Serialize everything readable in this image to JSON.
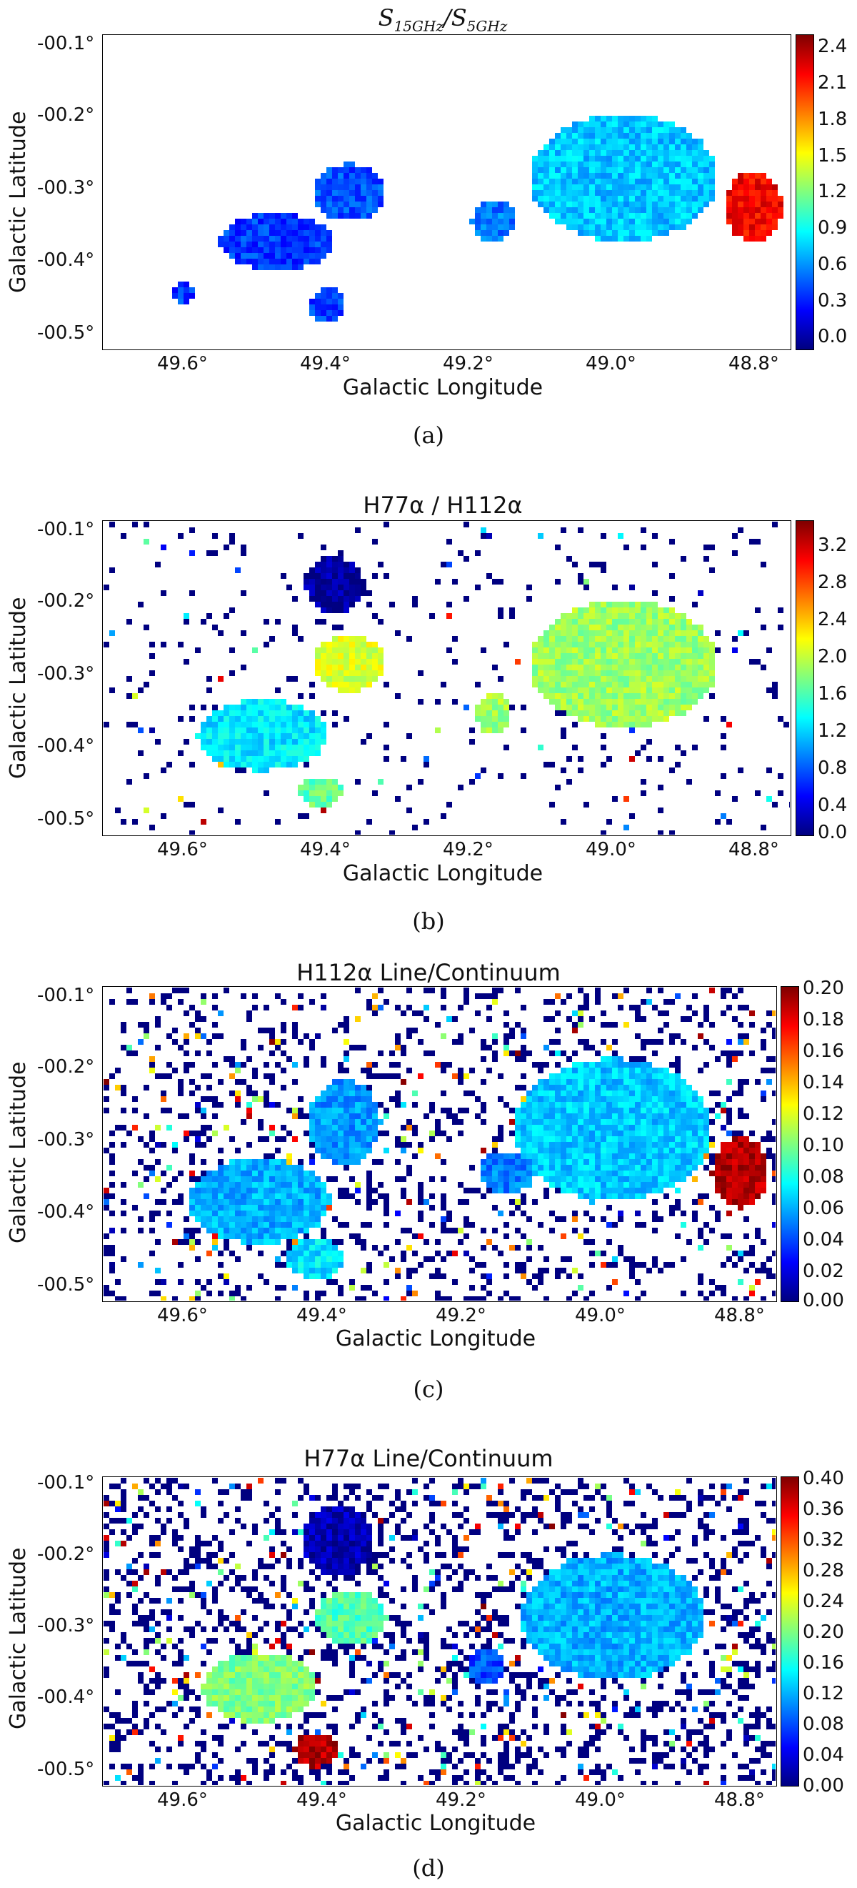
{
  "panels": [
    {
      "title_main": "S",
      "title_sub1": "15GHz",
      "title_mid": "/S",
      "title_sub2": "5GHz",
      "caption": "(a)",
      "xlabel": "Galactic Longitude",
      "ylabel": "Galactic Latitude",
      "x_ticks": [
        "49.6°",
        "49.4°",
        "49.2°",
        "49.0°",
        "48.8°"
      ],
      "y_ticks": [
        "-00.1°",
        "-00.2°",
        "-00.3°",
        "-00.4°",
        "-00.5°"
      ],
      "cbar_ticks": [
        "2.4",
        "2.1",
        "1.8",
        "1.5",
        "1.2",
        "0.9",
        "0.6",
        "0.3",
        "0.0"
      ]
    },
    {
      "title": "H77α / H112α",
      "caption": "(b)",
      "xlabel": "Galactic Longitude",
      "ylabel": "Galactic Latitude",
      "x_ticks": [
        "49.6°",
        "49.4°",
        "49.2°",
        "49.0°",
        "48.8°"
      ],
      "y_ticks": [
        "-00.1°",
        "-00.2°",
        "-00.3°",
        "-00.4°",
        "-00.5°"
      ],
      "cbar_ticks": [
        "3.2",
        "2.8",
        "2.4",
        "2.0",
        "1.6",
        "1.2",
        "0.8",
        "0.4",
        "0.0"
      ]
    },
    {
      "title": "H112α Line/Continuum",
      "caption": "(c)",
      "xlabel": "Galactic Longitude",
      "ylabel": "Galactic Latitude",
      "x_ticks": [
        "49.6°",
        "49.4°",
        "49.2°",
        "49.0°",
        "48.8°"
      ],
      "y_ticks": [
        "-00.1°",
        "-00.2°",
        "-00.3°",
        "-00.4°",
        "-00.5°"
      ],
      "cbar_ticks": [
        "0.20",
        "0.18",
        "0.16",
        "0.14",
        "0.12",
        "0.10",
        "0.08",
        "0.06",
        "0.04",
        "0.02",
        "0.00"
      ]
    },
    {
      "title": "H77α Line/Continuum",
      "caption": "(d)",
      "xlabel": "Galactic Longitude",
      "ylabel": "Galactic Latitude",
      "x_ticks": [
        "49.6°",
        "49.4°",
        "49.2°",
        "49.0°",
        "48.8°"
      ],
      "y_ticks": [
        "-00.1°",
        "-00.2°",
        "-00.3°",
        "-00.4°",
        "-00.5°"
      ],
      "cbar_ticks": [
        "0.40",
        "0.36",
        "0.32",
        "0.28",
        "0.24",
        "0.20",
        "0.16",
        "0.12",
        "0.08",
        "0.04",
        "0.00"
      ]
    }
  ],
  "chart_data": [
    {
      "type": "heatmap",
      "x_ticks": [
        49.6,
        49.4,
        49.2,
        49.0,
        48.8
      ],
      "y_ticks": [
        -0.1,
        -0.2,
        -0.3,
        -0.4,
        -0.5
      ],
      "xlim": [
        49.72,
        48.77
      ],
      "ylim": [
        -0.53,
        -0.09
      ],
      "colorbar": {
        "min": 0.0,
        "max": 2.5,
        "colormap": "jet"
      },
      "regions": [
        {
          "l": 49.48,
          "b": -0.38,
          "rl": 0.08,
          "rb": 0.04,
          "value": 0.45
        },
        {
          "l": 49.38,
          "b": -0.31,
          "rl": 0.05,
          "rb": 0.04,
          "value": 0.5
        },
        {
          "l": 49.61,
          "b": -0.45,
          "rl": 0.015,
          "rb": 0.015,
          "value": 0.45
        },
        {
          "l": 49.41,
          "b": -0.47,
          "rl": 0.025,
          "rb": 0.025,
          "value": 0.45
        },
        {
          "l": 49.18,
          "b": -0.35,
          "rl": 0.03,
          "rb": 0.03,
          "value": 0.6
        },
        {
          "l": 49.0,
          "b": -0.29,
          "rl": 0.13,
          "rb": 0.09,
          "value": 0.8
        },
        {
          "l": 48.82,
          "b": -0.33,
          "rl": 0.04,
          "rb": 0.05,
          "value": 2.2
        }
      ]
    },
    {
      "type": "heatmap",
      "x_ticks": [
        49.6,
        49.4,
        49.2,
        49.0,
        48.8
      ],
      "y_ticks": [
        -0.1,
        -0.2,
        -0.3,
        -0.4,
        -0.5
      ],
      "xlim": [
        49.72,
        48.77
      ],
      "ylim": [
        -0.53,
        -0.09
      ],
      "colorbar": {
        "min": 0.0,
        "max": 3.4,
        "colormap": "jet"
      },
      "regions": [
        {
          "l": 49.5,
          "b": -0.39,
          "rl": 0.09,
          "rb": 0.05,
          "value": 1.2
        },
        {
          "l": 49.38,
          "b": -0.29,
          "rl": 0.05,
          "rb": 0.04,
          "value": 2.0
        },
        {
          "l": 49.4,
          "b": -0.18,
          "rl": 0.04,
          "rb": 0.04,
          "value": 0.1
        },
        {
          "l": 49.42,
          "b": -0.47,
          "rl": 0.03,
          "rb": 0.02,
          "value": 1.6
        },
        {
          "l": 49.18,
          "b": -0.36,
          "rl": 0.025,
          "rb": 0.03,
          "value": 1.8
        },
        {
          "l": 49.0,
          "b": -0.29,
          "rl": 0.13,
          "rb": 0.09,
          "value": 1.8
        }
      ]
    },
    {
      "type": "heatmap",
      "x_ticks": [
        49.6,
        49.4,
        49.2,
        49.0,
        48.8
      ],
      "y_ticks": [
        -0.1,
        -0.2,
        -0.3,
        -0.4,
        -0.5
      ],
      "xlim": [
        49.72,
        48.77
      ],
      "ylim": [
        -0.53,
        -0.09
      ],
      "colorbar": {
        "min": 0.0,
        "max": 0.2,
        "colormap": "jet"
      },
      "regions": [
        {
          "l": 49.5,
          "b": -0.39,
          "rl": 0.1,
          "rb": 0.06,
          "value": 0.06
        },
        {
          "l": 49.38,
          "b": -0.28,
          "rl": 0.05,
          "rb": 0.06,
          "value": 0.055
        },
        {
          "l": 49.42,
          "b": -0.47,
          "rl": 0.04,
          "rb": 0.03,
          "value": 0.07
        },
        {
          "l": 49.15,
          "b": -0.35,
          "rl": 0.04,
          "rb": 0.03,
          "value": 0.05
        },
        {
          "l": 49.0,
          "b": -0.29,
          "rl": 0.14,
          "rb": 0.1,
          "value": 0.065
        },
        {
          "l": 48.82,
          "b": -0.35,
          "rl": 0.04,
          "rb": 0.05,
          "value": 0.19
        }
      ]
    },
    {
      "type": "heatmap",
      "x_ticks": [
        49.6,
        49.4,
        49.2,
        49.0,
        48.8
      ],
      "y_ticks": [
        -0.1,
        -0.2,
        -0.3,
        -0.4,
        -0.5
      ],
      "xlim": [
        49.72,
        48.77
      ],
      "ylim": [
        -0.53,
        -0.09
      ],
      "colorbar": {
        "min": 0.0,
        "max": 0.4,
        "colormap": "jet"
      },
      "regions": [
        {
          "l": 49.5,
          "b": -0.39,
          "rl": 0.08,
          "rb": 0.05,
          "value": 0.2
        },
        {
          "l": 49.37,
          "b": -0.29,
          "rl": 0.05,
          "rb": 0.04,
          "value": 0.18
        },
        {
          "l": 49.39,
          "b": -0.18,
          "rl": 0.05,
          "rb": 0.05,
          "value": 0.02
        },
        {
          "l": 49.18,
          "b": -0.36,
          "rl": 0.025,
          "rb": 0.025,
          "value": 0.08
        },
        {
          "l": 49.0,
          "b": -0.29,
          "rl": 0.13,
          "rb": 0.09,
          "value": 0.12
        },
        {
          "l": 49.42,
          "b": -0.48,
          "rl": 0.03,
          "rb": 0.025,
          "value": 0.38
        }
      ]
    }
  ]
}
